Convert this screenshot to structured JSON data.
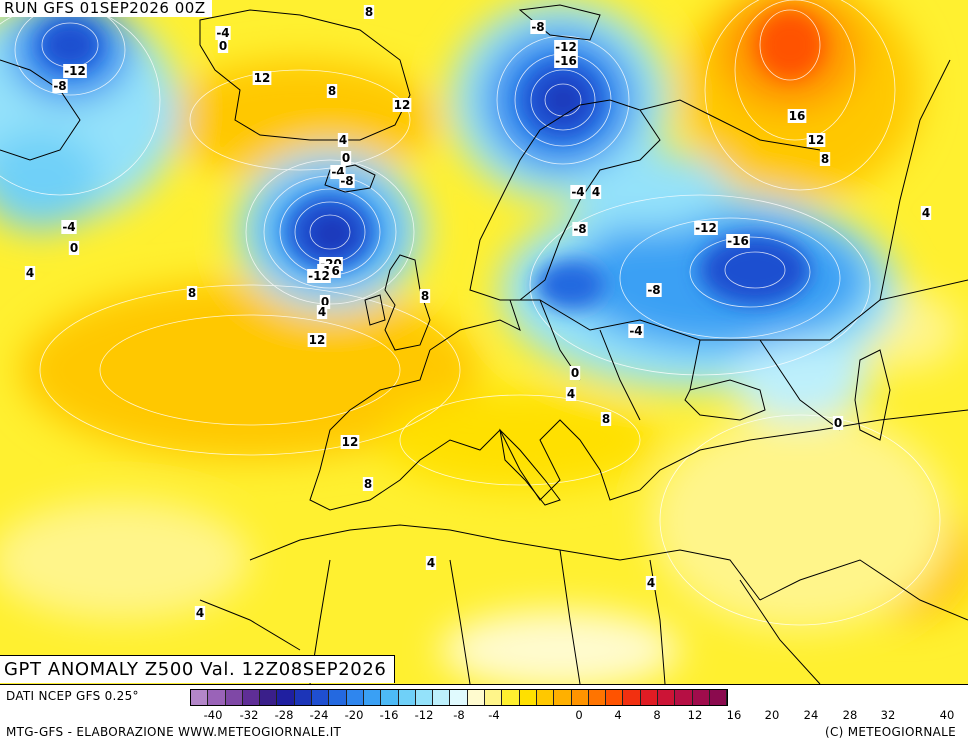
{
  "run_label": "RUN GFS 01SEP2026 00Z",
  "title": "GPT ANOMALY Z500 Val. 12Z08SEP2026",
  "source": "DATI NCEP GFS 0.25°",
  "credit_left": "MTG-GFS - ELABORAZIONE WWW.METEOGIORNALE.IT",
  "credit_right": "(C) METEOGIORNALE",
  "legend": {
    "colors": [
      "#b386c9",
      "#9a63b8",
      "#7f48a6",
      "#5f2e96",
      "#3a1f8a",
      "#1f1fa0",
      "#1c35b8",
      "#1f4fd0",
      "#2469e0",
      "#2f86ee",
      "#3aa0f4",
      "#4dbaf6",
      "#6fd0f8",
      "#94e2fa",
      "#bdf0fc",
      "#e0fafe",
      "#fffbcf",
      "#fff58a",
      "#fff030",
      "#ffe000",
      "#ffc800",
      "#ffb000",
      "#ff9400",
      "#ff7400",
      "#ff5300",
      "#f23010",
      "#e01c24",
      "#cc1436",
      "#b60f44",
      "#a00c4c",
      "#8b0a4e"
    ],
    "ticks": [
      "-40",
      "-32",
      "-28",
      "-24",
      "-20",
      "-16",
      "-12",
      "-8",
      "-4",
      "0",
      "4",
      "8",
      "12",
      "16",
      "20",
      "24",
      "28",
      "32",
      "40"
    ]
  },
  "contour_labels": [
    {
      "text": "8"
    },
    {
      "text": "-4"
    },
    {
      "text": "0"
    },
    {
      "text": "-12"
    },
    {
      "text": "-8"
    },
    {
      "text": "12"
    },
    {
      "text": "8"
    },
    {
      "text": "12"
    },
    {
      "text": "4"
    },
    {
      "text": "0"
    },
    {
      "text": "-4"
    },
    {
      "text": "-8"
    },
    {
      "text": "-4"
    },
    {
      "text": "0"
    },
    {
      "text": "4"
    },
    {
      "text": "-20"
    },
    {
      "text": "-16"
    },
    {
      "text": "-12"
    },
    {
      "text": "0"
    },
    {
      "text": "4"
    },
    {
      "text": "8"
    },
    {
      "text": "8"
    },
    {
      "text": "12"
    },
    {
      "text": "-8"
    },
    {
      "text": "-12"
    },
    {
      "text": "-16"
    },
    {
      "text": "-4"
    },
    {
      "text": "4"
    },
    {
      "text": "-8"
    },
    {
      "text": "-12"
    },
    {
      "text": "-16"
    },
    {
      "text": "-8"
    },
    {
      "text": "-4"
    },
    {
      "text": "0"
    },
    {
      "text": "4"
    },
    {
      "text": "8"
    },
    {
      "text": "12"
    },
    {
      "text": "8"
    },
    {
      "text": "4"
    },
    {
      "text": "4"
    },
    {
      "text": "4"
    },
    {
      "text": "16"
    },
    {
      "text": "12"
    },
    {
      "text": "8"
    },
    {
      "text": "4"
    },
    {
      "text": "0"
    }
  ]
}
